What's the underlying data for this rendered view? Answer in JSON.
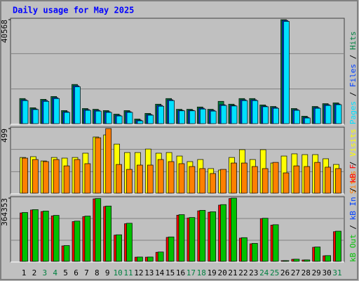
{
  "chart_data": [
    {
      "type": "bar",
      "title": "Daily usage for May 2025",
      "ylim": [
        0,
        40568
      ],
      "yticks": [
        40568
      ],
      "series": [
        {
          "name": "Hits",
          "color": "#008040",
          "values": [
            9800,
            6200,
            9500,
            10600,
            5100,
            15300,
            5900,
            5600,
            5100,
            3700,
            5100,
            1800,
            4000,
            7600,
            9800,
            5600,
            5600,
            6500,
            5600,
            8700,
            7600,
            9800,
            9800,
            7300,
            6700,
            40568,
            5900,
            2900,
            6700,
            7800,
            8100
          ]
        },
        {
          "name": "Files",
          "color": "#0040ff",
          "values": [
            9316,
            5754,
            9042,
            10138,
            4658,
            14796,
            5480,
            5206,
            4658,
            3288,
            4658,
            1370,
            3562,
            7124,
            9316,
            5206,
            5206,
            6028,
            5206,
            7398,
            7124,
            9316,
            9316,
            6850,
            6302,
            40278,
            5480,
            2466,
            6302,
            7398,
            7672
          ]
        },
        {
          "name": "Pages",
          "color": "#00e0ff",
          "values": [
            9000,
            5500,
            8700,
            9800,
            4400,
            14400,
            5200,
            4900,
            4400,
            3000,
            4400,
            1100,
            3300,
            6800,
            9000,
            5000,
            5000,
            5700,
            4900,
            7100,
            6900,
            9000,
            9000,
            6600,
            6000,
            39900,
            5200,
            2200,
            6000,
            7100,
            7400
          ]
        }
      ]
    },
    {
      "type": "bar",
      "ylim": [
        0,
        499
      ],
      "yticks": [
        499
      ],
      "series": [
        {
          "name": "Visits",
          "color": "#ffff00",
          "values": [
            276,
            282,
            249,
            276,
            271,
            276,
            309,
            434,
            450,
            379,
            314,
            314,
            341,
            309,
            314,
            287,
            244,
            260,
            190,
            179,
            276,
            336,
            260,
            336,
            233,
            287,
            304,
            298,
            298,
            266,
            222
          ]
        },
        {
          "name": "Sites",
          "color": "#ff8000",
          "values": [
            271,
            260,
            244,
            260,
            211,
            260,
            228,
            428,
            499,
            222,
            184,
            217,
            217,
            260,
            244,
            228,
            206,
            190,
            152,
            184,
            233,
            233,
            206,
            190,
            238,
            157,
            211,
            206,
            238,
            201,
            190
          ]
        }
      ]
    },
    {
      "type": "bar",
      "ylim": [
        0,
        364353
      ],
      "yticks": [
        364353
      ],
      "categories": [
        "1",
        "2",
        "3",
        "4",
        "5",
        "6",
        "7",
        "8",
        "9",
        "10",
        "11",
        "12",
        "13",
        "14",
        "15",
        "16",
        "17",
        "18",
        "19",
        "20",
        "21",
        "22",
        "23",
        "24",
        "25",
        "26",
        "27",
        "28",
        "29",
        "30",
        "31"
      ],
      "weekends": [
        "3",
        "4",
        "10",
        "11",
        "17",
        "18",
        "24",
        "25",
        "31"
      ],
      "weekend_color": "#008040",
      "legend_extra": {
        "name": "kB In",
        "color": "#0040ff"
      },
      "series": [
        {
          "name": "kB F",
          "color": "#ff0000",
          "values": [
            279000,
            296000,
            287000,
            262000,
            89000,
            229000,
            258000,
            360000,
            316000,
            151000,
            217000,
            24000,
            24000,
            52000,
            138000,
            266000,
            250000,
            291000,
            283000,
            324000,
            362000,
            134000,
            101000,
            246000,
            209000,
            4000,
            12000,
            8000,
            81000,
            32000,
            171000
          ]
        },
        {
          "name": "kB Out",
          "color": "#00c000",
          "values": [
            281520,
            298080,
            289800,
            264960,
            91080,
            231840,
            260820,
            362000,
            318780,
            153180,
            219420,
            24840,
            24840,
            53820,
            140760,
            269100,
            252540,
            293940,
            285660,
            327060,
            364353,
            136620,
            103500,
            248400,
            211140,
            4140,
            12420,
            8280,
            82800,
            33120,
            173880
          ]
        }
      ]
    }
  ]
}
